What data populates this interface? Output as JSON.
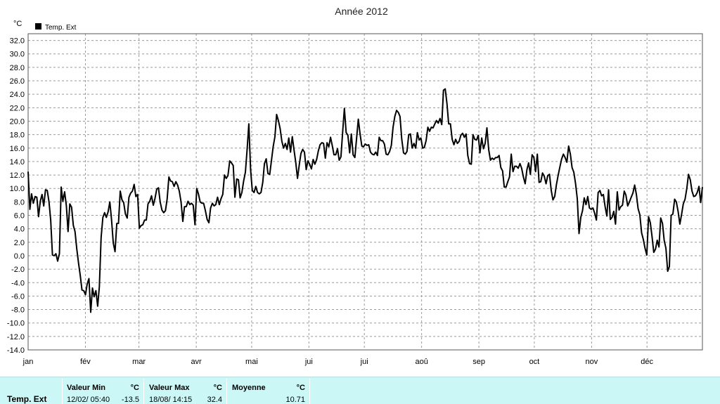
{
  "chart_data": {
    "type": "line",
    "title": "Année 2012",
    "ylabel": "°C",
    "ylim": [
      -14,
      33
    ],
    "yticks": [
      "32.0",
      "30.0",
      "28.0",
      "26.0",
      "24.0",
      "22.0",
      "20.0",
      "18.0",
      "16.0",
      "14.0",
      "12.0",
      "10.0",
      "8.0",
      "6.0",
      "4.0",
      "2.0",
      "0.0",
      "-2.0",
      "-4.0",
      "-6.0",
      "-8.0",
      "-10.0",
      "-12.0",
      "-14.0"
    ],
    "xticks": [
      "jan",
      "fév",
      "mar",
      "avr",
      "mai",
      "jui",
      "jui",
      "aoû",
      "sep",
      "oct",
      "nov",
      "déc"
    ],
    "legend_position": "top-left",
    "grid": true,
    "series": [
      {
        "name": "Temp. Ext",
        "color": "#000000",
        "values": [
          12.5,
          6.9,
          9.2,
          7.8,
          8.8,
          8.7,
          5.8,
          8.1,
          9.1,
          7.4,
          9.8,
          9.7,
          8.0,
          5.3,
          0.1,
          0.0,
          0.3,
          -0.8,
          0.3,
          10.2,
          8.1,
          9.5,
          7.4,
          3.6,
          7.7,
          7.2,
          4.5,
          3.6,
          1.0,
          -1.1,
          -2.9,
          -5.1,
          -5.2,
          -5.8,
          -4.2,
          -3.4,
          -8.4,
          -4.8,
          -6.1,
          -5.2,
          -7.5,
          -4.6,
          2.7,
          5.7,
          6.4,
          5.7,
          6.5,
          8.0,
          5.4,
          1.9,
          0.6,
          4.8,
          4.8,
          9.6,
          8.3,
          7.9,
          6.2,
          5.6,
          8.7,
          9.3,
          9.6,
          10.6,
          8.8,
          9.1,
          4.1,
          4.5,
          4.6,
          5.3,
          5.3,
          7.7,
          8.1,
          8.9,
          7.5,
          8.5,
          9.9,
          10.1,
          8.0,
          6.8,
          6.4,
          6.7,
          8.4,
          11.7,
          11.1,
          11.0,
          10.3,
          11.0,
          10.5,
          9.6,
          8.0,
          5.1,
          7.3,
          7.3,
          8.1,
          7.6,
          7.8,
          7.5,
          4.6,
          10.0,
          9.2,
          8.0,
          7.8,
          7.8,
          6.7,
          5.4,
          4.9,
          7.1,
          7.8,
          7.4,
          7.6,
          8.7,
          7.6,
          8.5,
          9.1,
          12.0,
          11.5,
          11.9,
          14.1,
          13.8,
          13.4,
          8.7,
          11.4,
          11.3,
          8.6,
          9.4,
          11.1,
          12.4,
          15.7,
          19.6,
          12.8,
          9.7,
          9.4,
          10.3,
          9.4,
          9.2,
          9.4,
          10.9,
          13.7,
          14.4,
          12.2,
          12.1,
          14.1,
          16.2,
          17.7,
          21.0,
          20.1,
          18.9,
          17.0,
          16.0,
          16.7,
          15.8,
          17.5,
          15.4,
          17.7,
          15.7,
          13.9,
          11.5,
          13.5,
          15.2,
          15.8,
          15.4,
          12.8,
          14.1,
          13.6,
          12.9,
          14.3,
          13.6,
          14.3,
          15.6,
          16.5,
          16.8,
          16.7,
          14.5,
          16.8,
          16.2,
          17.6,
          16.4,
          15.0,
          15.0,
          15.9,
          14.2,
          14.7,
          18.5,
          21.9,
          18.3,
          17.9,
          15.3,
          18.1,
          15.0,
          14.6,
          17.4,
          20.3,
          18.1,
          16.3,
          16.2,
          16.6,
          16.4,
          16.5,
          15.4,
          15.1,
          15.0,
          15.4,
          14.9,
          17.6,
          17.1,
          17.1,
          16.6,
          15.1,
          15.0,
          15.5,
          16.4,
          19.1,
          20.7,
          21.6,
          21.3,
          20.7,
          17.3,
          15.3,
          15.1,
          15.5,
          18.0,
          18.1,
          16.0,
          16.7,
          16.0,
          18.3,
          17.2,
          17.5,
          16.0,
          16.1,
          17.1,
          19.1,
          18.5,
          19.1,
          19.0,
          19.6,
          20.1,
          19.7,
          20.4,
          19.5,
          24.6,
          24.8,
          22.6,
          19.6,
          19.6,
          17.3,
          16.5,
          17.3,
          16.7,
          17.0,
          17.9,
          18.2,
          17.6,
          18.1,
          14.9,
          13.7,
          13.6,
          18.0,
          17.3,
          17.2,
          17.9,
          15.3,
          17.5,
          15.9,
          16.7,
          19.0,
          15.8,
          14.2,
          14.5,
          14.3,
          14.6,
          14.6,
          14.9,
          13.1,
          12.6,
          10.2,
          10.2,
          11.0,
          11.7,
          15.1,
          12.5,
          13.3,
          13.3,
          13.0,
          13.7,
          13.0,
          11.7,
          10.7,
          12.8,
          13.8,
          12.1,
          15.0,
          14.6,
          12.5,
          15.1,
          10.9,
          11.0,
          12.3,
          11.8,
          10.7,
          11.9,
          12.1,
          9.7,
          8.3,
          8.8,
          10.6,
          12.0,
          13.2,
          14.4,
          15.1,
          14.6,
          13.9,
          16.3,
          15.1,
          13.1,
          12.4,
          10.7,
          8.5,
          3.3,
          5.7,
          6.7,
          8.6,
          7.6,
          8.8,
          7.1,
          6.9,
          7.1,
          6.3,
          5.3,
          9.4,
          9.7,
          8.9,
          9.1,
          7.3,
          5.9,
          9.8,
          5.4,
          5.7,
          6.6,
          4.7,
          9.5,
          6.8,
          7.3,
          7.5,
          9.6,
          9.0,
          7.4,
          8.0,
          8.7,
          9.3,
          10.5,
          9.1,
          7.0,
          6.1,
          3.4,
          2.4,
          1.1,
          0.1,
          5.8,
          4.9,
          2.9,
          0.5,
          1.0,
          2.3,
          1.3,
          5.6,
          4.8,
          2.3,
          1.1,
          -2.3,
          -1.6,
          6.0,
          6.2,
          8.4,
          8.0,
          6.6,
          4.7,
          6.1,
          7.7,
          8.4,
          10.0,
          12.1,
          11.3,
          9.6,
          8.8,
          8.9,
          9.4,
          10.3,
          7.9,
          10.2
        ]
      }
    ]
  },
  "legend": {
    "label": "Temp. Ext"
  },
  "stats": {
    "series_label": "Temp. Ext",
    "min": {
      "header": "Valeur Min",
      "unit": "°C",
      "date": "12/02/ 05:40",
      "value": "-13.5"
    },
    "max": {
      "header": "Valeur Max",
      "unit": "°C",
      "date": "18/08/ 14:15",
      "value": "32.4"
    },
    "avg": {
      "header": "Moyenne",
      "unit": "°C",
      "value": "10.71"
    }
  }
}
